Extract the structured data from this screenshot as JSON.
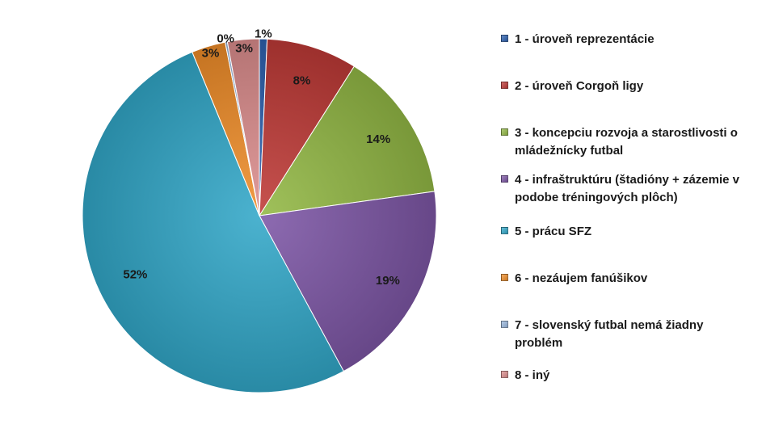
{
  "chart_data": {
    "type": "pie",
    "start_angle_deg": 0,
    "direction": "clockwise",
    "categories": [
      "1 - úroveň reprezentácie",
      "2 - úroveň Corgoň ligy",
      "3 - koncepciu rozvoja a starostlivosti o mládežnícky futbal",
      "4 - infraštruktúru (štadióny + zázemie v podobe tréningových plôch)",
      "5 - prácu SFZ",
      "6 - nezáujem fanúšikov",
      "7 - slovenský futbal nemá žiadny problém",
      "8 - iný"
    ],
    "values": [
      0.7,
      8.3,
      13.8,
      19.3,
      51.7,
      3.1,
      0.2,
      2.9
    ],
    "labels": [
      "1%",
      "8%",
      "14%",
      "19%",
      "52%",
      "3%",
      "0%",
      "3%"
    ],
    "colors": [
      "#2e62b0",
      "#bf3a37",
      "#93b945",
      "#7d57a6",
      "#32a8c9",
      "#f08e2a",
      "#9ab8de",
      "#dd8e8e"
    ],
    "legend_placement": "right"
  },
  "legend": {
    "items": [
      {
        "lines": [
          "1 - úroveň reprezentácie"
        ]
      },
      {
        "lines": [
          "2 - úroveň Corgoň ligy"
        ]
      },
      {
        "lines": [
          "3 - koncepciu rozvoja a starostlivosti o",
          "mládežnícky futbal"
        ]
      },
      {
        "lines": [
          "4 - infraštruktúru (štadióny + zázemie v",
          "podobe tréningových plôch)"
        ]
      },
      {
        "lines": [
          "5 - prácu SFZ"
        ]
      },
      {
        "lines": [
          "6 - nezáujem fanúšikov"
        ]
      },
      {
        "lines": [
          "7 - slovenský futbal nemá žiadny",
          "problém"
        ]
      },
      {
        "lines": [
          "8 - iný"
        ]
      }
    ]
  }
}
